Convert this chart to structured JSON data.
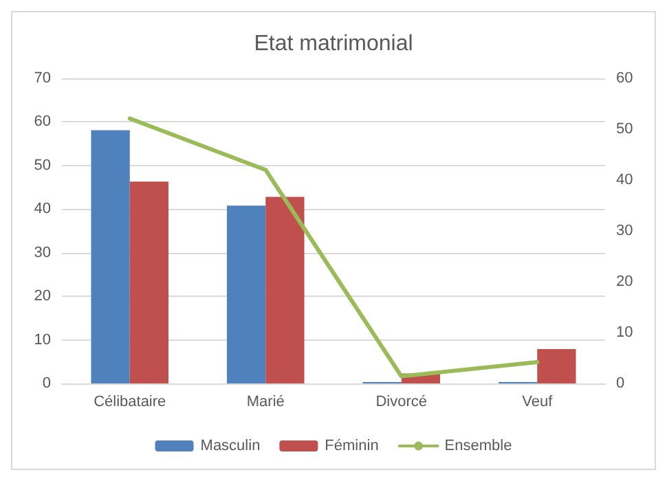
{
  "chart_data": {
    "type": "bar",
    "title": "Etat matrimonial",
    "categories": [
      "Célibataire",
      "Marié",
      "Divorcé",
      "Veuf"
    ],
    "series": [
      {
        "name": "Masculin",
        "color": "#4f81bd",
        "values": [
          58.1,
          40.8,
          0.3,
          0.3
        ]
      },
      {
        "name": "Féminin",
        "color": "#c0504d",
        "values": [
          46.3,
          42.8,
          2.3,
          7.9
        ]
      },
      {
        "name": "Ensemble",
        "color": "#9bbb59",
        "type": "line",
        "axis": "y2",
        "values": [
          52.1,
          42.0,
          1.4,
          4.2
        ]
      }
    ],
    "ylim": [
      0,
      70
    ],
    "yticks": [
      0,
      10,
      20,
      30,
      40,
      50,
      60,
      70
    ],
    "y2lim": [
      0,
      60
    ],
    "y2ticks": [
      0,
      10,
      20,
      30,
      40,
      50,
      60
    ],
    "grid": "y",
    "legend": "bottom",
    "marker": "none"
  }
}
